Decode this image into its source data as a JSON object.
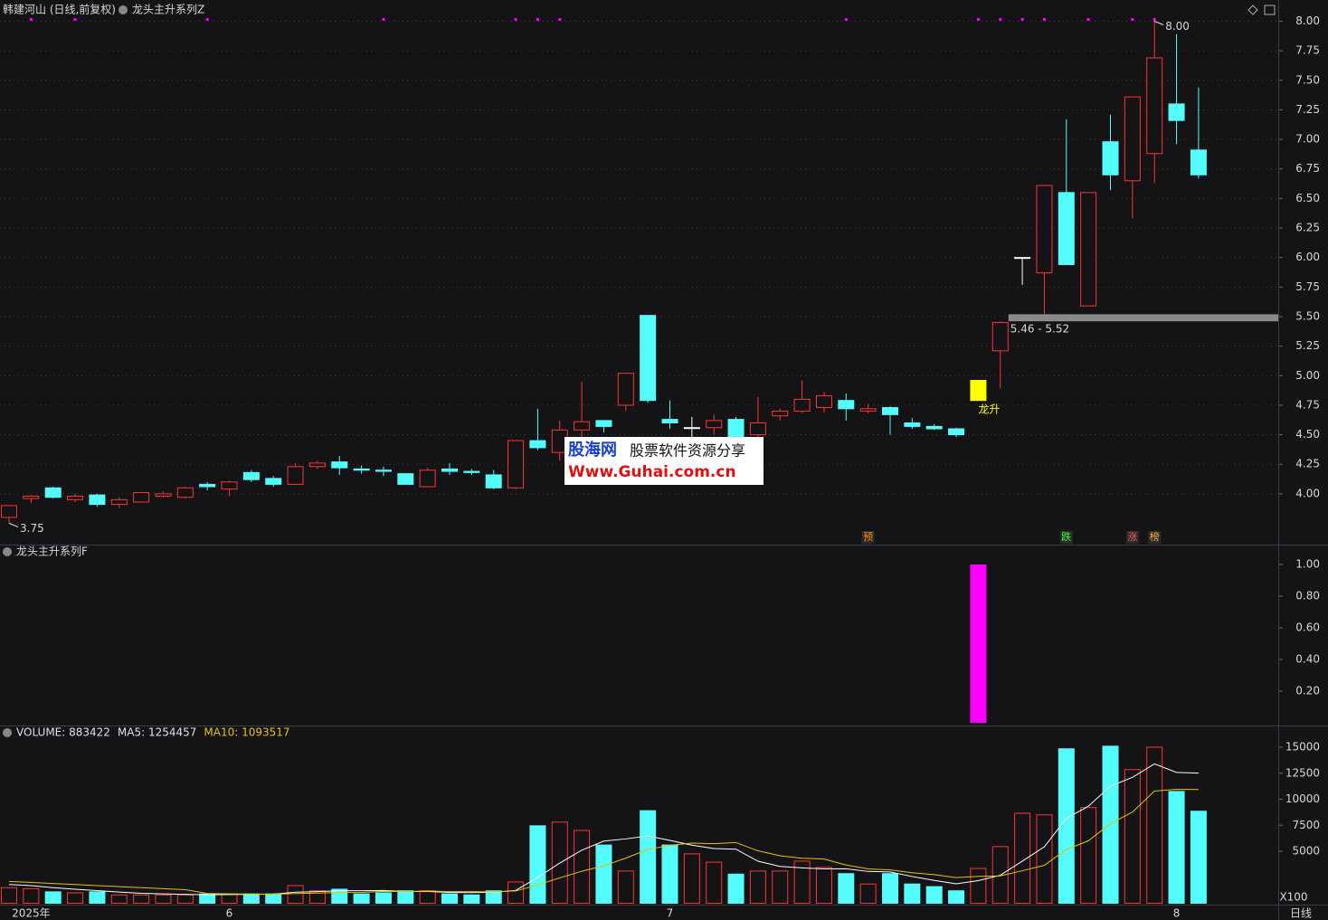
{
  "chart_data": [
    {
      "type": "candlestick",
      "title": "韩建河山 (日线,前复权)",
      "subtitle": "龙头主升系列Z",
      "categories": [
        null,
        "2025年",
        null,
        null,
        null,
        null,
        null,
        null,
        null,
        null,
        "6",
        null,
        null,
        null,
        null,
        null,
        null,
        null,
        null,
        null,
        null,
        null,
        null,
        null,
        null,
        null,
        null,
        null,
        null,
        null,
        "7",
        null,
        null,
        null,
        null,
        null,
        null,
        null,
        null,
        null,
        null,
        null,
        null,
        null,
        null,
        null,
        null,
        null,
        null,
        null,
        null,
        null,
        null,
        "8",
        null
      ],
      "open": [
        3.8,
        3.96,
        4.05,
        3.95,
        3.99,
        3.91,
        3.93,
        3.98,
        3.97,
        4.08,
        4.04,
        4.18,
        4.13,
        4.08,
        4.23,
        4.27,
        4.21,
        4.2,
        4.17,
        4.06,
        4.21,
        4.19,
        4.16,
        4.05,
        4.45,
        4.35,
        4.54,
        4.62,
        4.75,
        5.51,
        4.63,
        4.56,
        4.56,
        4.63,
        4.5,
        4.66,
        4.7,
        4.73,
        4.79,
        4.7,
        4.73,
        4.6,
        4.57,
        4.55,
        4.79,
        5.21,
        6.0,
        5.87,
        6.55,
        5.59,
        6.98,
        6.65,
        6.88,
        7.3,
        6.91
      ],
      "high": [
        3.9,
        3.99,
        4.06,
        4.0,
        4.0,
        3.97,
        4.01,
        4.02,
        4.06,
        4.1,
        4.11,
        4.2,
        4.15,
        4.26,
        4.28,
        4.32,
        4.24,
        4.23,
        4.17,
        4.22,
        4.26,
        4.21,
        4.2,
        4.45,
        4.72,
        4.62,
        4.95,
        4.62,
        5.02,
        5.51,
        4.79,
        4.65,
        4.67,
        4.65,
        4.82,
        4.72,
        4.96,
        4.86,
        4.85,
        4.76,
        4.74,
        4.64,
        4.59,
        4.56,
        4.96,
        5.46,
        6.0,
        6.61,
        7.17,
        6.55,
        7.21,
        7.36,
        8.0,
        7.89,
        7.44
      ],
      "low": [
        3.75,
        3.92,
        3.96,
        3.93,
        3.89,
        3.88,
        3.93,
        3.97,
        3.96,
        4.03,
        3.98,
        4.1,
        4.06,
        4.08,
        4.21,
        4.16,
        4.17,
        4.15,
        4.08,
        4.06,
        4.16,
        4.16,
        4.04,
        4.04,
        4.37,
        4.28,
        4.47,
        4.52,
        4.7,
        4.77,
        4.55,
        4.47,
        4.5,
        4.4,
        4.45,
        4.62,
        4.68,
        4.69,
        4.62,
        4.68,
        4.5,
        4.55,
        4.54,
        4.48,
        4.79,
        4.89,
        5.77,
        5.52,
        5.94,
        5.59,
        6.57,
        6.33,
        6.63,
        6.96,
        6.67
      ],
      "close": [
        3.9,
        3.98,
        3.97,
        3.98,
        3.91,
        3.95,
        4.01,
        4.0,
        4.05,
        4.06,
        4.1,
        4.12,
        4.08,
        4.23,
        4.26,
        4.22,
        4.2,
        4.19,
        4.08,
        4.2,
        4.19,
        4.18,
        4.05,
        4.45,
        4.39,
        4.54,
        4.61,
        4.57,
        5.02,
        4.79,
        4.6,
        4.56,
        4.62,
        4.47,
        4.6,
        4.7,
        4.8,
        4.83,
        4.72,
        4.72,
        4.67,
        4.57,
        4.55,
        4.5,
        4.96,
        5.45,
        6.0,
        6.61,
        5.94,
        6.55,
        6.7,
        7.36,
        7.69,
        7.16,
        6.7
      ],
      "up_color": "#ff3232",
      "down_color": "#54fcfc",
      "doji_color": "#ffffff",
      "ylim": [
        3.57,
        8.18
      ],
      "yticks": [
        {
          "value": 4.0,
          "label": "4.00"
        },
        {
          "value": 4.25,
          "label": "4.25"
        },
        {
          "value": 4.5,
          "label": "4.50"
        },
        {
          "value": 4.75,
          "label": "4.75"
        },
        {
          "value": 5.0,
          "label": "5.00"
        },
        {
          "value": 5.25,
          "label": "5.25"
        },
        {
          "value": 5.5,
          "label": "5.50"
        },
        {
          "value": 5.75,
          "label": "5.75"
        },
        {
          "value": 6.0,
          "label": "6.00"
        },
        {
          "value": 6.25,
          "label": "6.25"
        },
        {
          "value": 6.5,
          "label": "6.50"
        },
        {
          "value": 6.75,
          "label": "6.75"
        },
        {
          "value": 7.0,
          "label": "7.00"
        },
        {
          "value": 7.25,
          "label": "7.25"
        },
        {
          "value": 7.5,
          "label": "7.50"
        },
        {
          "value": 7.75,
          "label": "7.75"
        },
        {
          "value": 8.0,
          "label": "8.00"
        }
      ],
      "grid": true,
      "signal": {
        "index": 44,
        "label": "龙升",
        "color": "#ffff00"
      },
      "extremes": [
        {
          "index": 52,
          "value": 8.0,
          "label": "8.00"
        },
        {
          "index": 0,
          "value": 3.75,
          "label": "3.75"
        }
      ],
      "zone": {
        "index": 45,
        "low": 5.46,
        "high": 5.52,
        "label": "5.46 - 5.52",
        "color": "#8a8a8a"
      },
      "dot_markers": {
        "color": "#ff00ff",
        "indices": [
          1,
          3,
          9,
          17,
          23,
          24,
          25,
          38,
          44,
          45,
          46,
          47,
          49,
          51,
          52
        ]
      },
      "bottom_markers": [
        {
          "index": 39,
          "label": "预",
          "color": "#ff8c1a"
        },
        {
          "index": 48,
          "label": "跌",
          "color": "#33ff33"
        },
        {
          "index": 51,
          "label": "涨",
          "color": "#ff5555"
        },
        {
          "index": 52,
          "label": "榜",
          "color": "#ffaa33"
        }
      ]
    },
    {
      "type": "bar",
      "title": "龙头主升系列F",
      "color": "#ff00ff",
      "values": [
        0,
        0,
        0,
        0,
        0,
        0,
        0,
        0,
        0,
        0,
        0,
        0,
        0,
        0,
        0,
        0,
        0,
        0,
        0,
        0,
        0,
        0,
        0,
        0,
        0,
        0,
        0,
        0,
        0,
        0,
        0,
        0,
        0,
        0,
        0,
        0,
        0,
        0,
        0,
        0,
        0,
        0,
        0,
        0,
        1,
        0,
        0,
        0,
        0,
        0,
        0,
        0,
        0,
        0,
        0
      ],
      "ylim": [
        0,
        1.12
      ],
      "yticks": [
        {
          "value": 0.2,
          "label": "0.20"
        },
        {
          "value": 0.4,
          "label": "0.40"
        },
        {
          "value": 0.6,
          "label": "0.60"
        },
        {
          "value": 0.8,
          "label": "0.80"
        },
        {
          "value": 1.0,
          "label": "1.00"
        }
      ]
    },
    {
      "type": "volume",
      "unit_label": "X100",
      "header": [
        {
          "label": "VOLUME: 883422",
          "color": "#e0e0e0"
        },
        {
          "label": "MA5: 1254457",
          "color": "#e0e0e0"
        },
        {
          "label": "MA10: 1093517",
          "color": "#e6c300"
        }
      ],
      "values": [
        1500,
        1400,
        1100,
        1000,
        1100,
        800,
        800,
        800,
        800,
        900,
        900,
        900,
        900,
        1700,
        1200,
        1350,
        900,
        1000,
        1200,
        1200,
        900,
        800,
        1200,
        2050,
        7450,
        7800,
        7000,
        5600,
        3100,
        8900,
        5600,
        4750,
        3950,
        2800,
        3100,
        3100,
        4050,
        3450,
        2850,
        1850,
        2850,
        1850,
        1600,
        1200,
        3350,
        5450,
        8650,
        8500,
        14850,
        9200,
        15100,
        12850,
        15000,
        10750,
        8850
      ],
      "series": [
        {
          "color": "#ffffff",
          "values": [
            1800,
            1700,
            1500,
            1350,
            1220,
            1080,
            960,
            900,
            860,
            820,
            840,
            860,
            880,
            1060,
            1120,
            1210,
            1210,
            1230,
            1130,
            1130,
            1040,
            1020,
            1060,
            1230,
            2480,
            3860,
            5100,
            5980,
            6190,
            6480,
            6040,
            5590,
            5260,
            5200,
            4040,
            3540,
            3400,
            3300,
            3310,
            3060,
            3010,
            2570,
            2200,
            1870,
            2170,
            2690,
            4050,
            5430,
            8160,
            9330,
            11260,
            12100,
            13400,
            12580,
            12510
          ]
        },
        {
          "color": "#e6c300",
          "values": [
            2100,
            2000,
            1900,
            1800,
            1700,
            1600,
            1500,
            1400,
            1300,
            950,
            900,
            880,
            870,
            940,
            980,
            1035,
            1045,
            1145,
            1125,
            1170,
            1125,
            1125,
            1095,
            1180,
            1760,
            2440,
            3080,
            3605,
            4335,
            5170,
            5570,
            5785,
            5725,
            5840,
            5040,
            4565,
            4330,
            4250,
            3675,
            3300,
            3205,
            2935,
            2755,
            2465,
            2590,
            2630,
            3125,
            3650,
            5165,
            6010,
            7655,
            8765,
            10780,
            10955,
            10935
          ]
        }
      ],
      "ylim": [
        0,
        17000
      ],
      "yticks": [
        5000,
        7500,
        10000,
        12500,
        15000
      ]
    }
  ],
  "watermark": {
    "brand": "股海网",
    "slogan": "股票软件资源分享",
    "url": "Www.Guhai.com.cn"
  },
  "period_button": "日线"
}
